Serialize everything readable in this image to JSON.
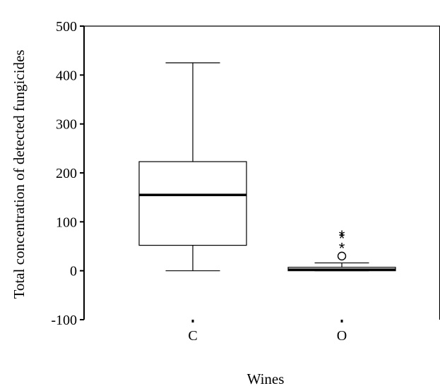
{
  "chart_data": {
    "type": "boxplot",
    "title": "",
    "xlabel": "Wines",
    "ylabel": "Total concentration of detected fungicides",
    "ylim": [
      -100,
      500
    ],
    "yticks": [
      -100,
      0,
      100,
      200,
      300,
      400,
      500
    ],
    "ytick_labels": [
      "-100",
      "0",
      "100",
      "200",
      "300",
      "400",
      "500"
    ],
    "grid": false,
    "legend": "none",
    "categories": [
      "C",
      "O"
    ],
    "boxes": [
      {
        "category": "C",
        "whisker_low": 0,
        "q1": 52,
        "median": 155,
        "q3": 223,
        "whisker_high": 425,
        "outliers": [],
        "extremes": []
      },
      {
        "category": "O",
        "whisker_low": 0,
        "q1": 0,
        "median": 2,
        "q3": 7,
        "whisker_high": 16,
        "outliers": [
          30
        ],
        "extremes": [
          48,
          68,
          73
        ]
      }
    ]
  }
}
